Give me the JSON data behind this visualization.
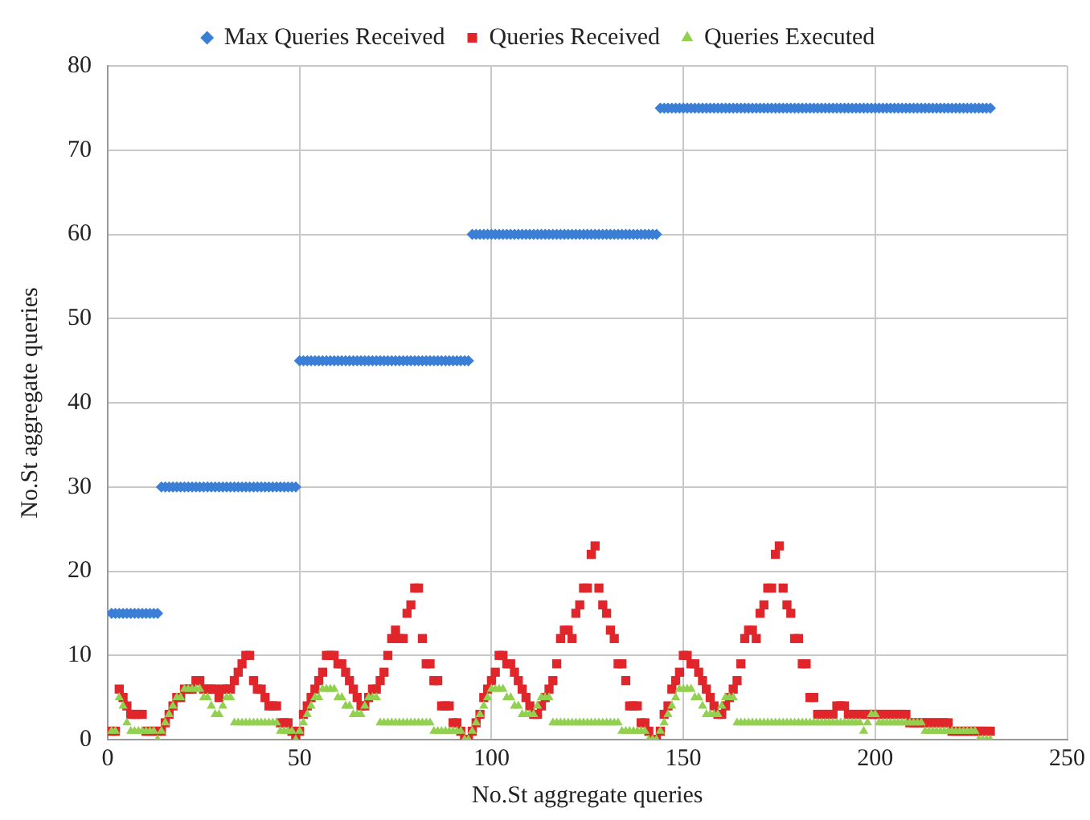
{
  "chart_data": {
    "type": "scatter",
    "xlabel": "No.St aggregate queries",
    "ylabel": "No.St aggregate queries",
    "x": [
      1,
      2,
      3,
      4,
      5,
      6,
      7,
      8,
      9,
      10,
      11,
      12,
      13,
      14,
      15,
      16,
      17,
      18,
      19,
      20,
      21,
      22,
      23,
      24,
      25,
      26,
      27,
      28,
      29,
      30,
      31,
      32,
      33,
      34,
      35,
      36,
      37,
      38,
      39,
      40,
      41,
      42,
      43,
      44,
      45,
      46,
      47,
      48,
      49,
      50,
      51,
      52,
      53,
      54,
      55,
      56,
      57,
      58,
      59,
      60,
      61,
      62,
      63,
      64,
      65,
      66,
      67,
      68,
      69,
      70,
      71,
      72,
      73,
      74,
      75,
      76,
      77,
      78,
      79,
      80,
      81,
      82,
      83,
      84,
      85,
      86,
      87,
      88,
      89,
      90,
      91,
      92,
      93,
      94,
      95,
      96,
      97,
      98,
      99,
      100,
      101,
      102,
      103,
      104,
      105,
      106,
      107,
      108,
      109,
      110,
      111,
      112,
      113,
      114,
      115,
      116,
      117,
      118,
      119,
      120,
      121,
      122,
      123,
      124,
      125,
      126,
      127,
      128,
      129,
      130,
      131,
      132,
      133,
      134,
      135,
      136,
      137,
      138,
      139,
      140,
      141,
      142,
      143,
      144,
      145,
      146,
      147,
      148,
      149,
      150,
      151,
      152,
      153,
      154,
      155,
      156,
      157,
      158,
      159,
      160,
      161,
      162,
      163,
      164,
      165,
      166,
      167,
      168,
      169,
      170,
      171,
      172,
      173,
      174,
      175,
      176,
      177,
      178,
      179,
      180,
      181,
      182,
      183,
      184,
      185,
      186,
      187,
      188,
      189,
      190,
      191,
      192,
      193,
      194,
      195,
      196,
      197,
      198,
      199,
      200,
      201,
      202,
      203,
      204,
      205,
      206,
      207,
      208,
      209,
      210,
      211,
      212,
      213,
      214,
      215,
      216,
      217,
      218,
      219,
      220,
      221,
      222,
      223,
      224,
      225,
      226,
      227,
      228,
      229,
      230
    ],
    "series": [
      {
        "name": "Max Queries Received",
        "color": "#3a7fd5",
        "marker": "diamond",
        "values": [
          15,
          15,
          15,
          15,
          15,
          15,
          15,
          15,
          15,
          15,
          15,
          15,
          15,
          30,
          30,
          30,
          30,
          30,
          30,
          30,
          30,
          30,
          30,
          30,
          30,
          30,
          30,
          30,
          30,
          30,
          30,
          30,
          30,
          30,
          30,
          30,
          30,
          30,
          30,
          30,
          30,
          30,
          30,
          30,
          30,
          30,
          30,
          30,
          30,
          45,
          45,
          45,
          45,
          45,
          45,
          45,
          45,
          45,
          45,
          45,
          45,
          45,
          45,
          45,
          45,
          45,
          45,
          45,
          45,
          45,
          45,
          45,
          45,
          45,
          45,
          45,
          45,
          45,
          45,
          45,
          45,
          45,
          45,
          45,
          45,
          45,
          45,
          45,
          45,
          45,
          45,
          45,
          45,
          45,
          60,
          60,
          60,
          60,
          60,
          60,
          60,
          60,
          60,
          60,
          60,
          60,
          60,
          60,
          60,
          60,
          60,
          60,
          60,
          60,
          60,
          60,
          60,
          60,
          60,
          60,
          60,
          60,
          60,
          60,
          60,
          60,
          60,
          60,
          60,
          60,
          60,
          60,
          60,
          60,
          60,
          60,
          60,
          60,
          60,
          60,
          60,
          60,
          60,
          75,
          75,
          75,
          75,
          75,
          75,
          75,
          75,
          75,
          75,
          75,
          75,
          75,
          75,
          75,
          75,
          75,
          75,
          75,
          75,
          75,
          75,
          75,
          75,
          75,
          75,
          75,
          75,
          75,
          75,
          75,
          75,
          75,
          75,
          75,
          75,
          75,
          75,
          75,
          75,
          75,
          75,
          75,
          75,
          75,
          75,
          75,
          75,
          75,
          75,
          75,
          75,
          75,
          75,
          75,
          75,
          75,
          75,
          75,
          75,
          75,
          75,
          75,
          75,
          75,
          75,
          75,
          75,
          75,
          75,
          75,
          75,
          75,
          75,
          75,
          75,
          75,
          75,
          75,
          75,
          75,
          75,
          75,
          75,
          75,
          75,
          75
        ]
      },
      {
        "name": "Queries Received",
        "color": "#e0262b",
        "marker": "square",
        "values": [
          1,
          1,
          6,
          5,
          4,
          3,
          3,
          3,
          3,
          1,
          1,
          1,
          1,
          1,
          2,
          3,
          4,
          5,
          5,
          6,
          6,
          6,
          7,
          7,
          6,
          6,
          6,
          6,
          5,
          6,
          6,
          6,
          7,
          8,
          9,
          10,
          10,
          7,
          6,
          6,
          5,
          4,
          4,
          4,
          2,
          2,
          2,
          1,
          0,
          1,
          3,
          4,
          5,
          6,
          7,
          8,
          10,
          10,
          10,
          9,
          9,
          8,
          7,
          6,
          5,
          4,
          4,
          5,
          6,
          6,
          7,
          8,
          10,
          12,
          13,
          12,
          12,
          15,
          16,
          18,
          18,
          12,
          9,
          9,
          7,
          7,
          4,
          4,
          4,
          2,
          2,
          1,
          0,
          0,
          1,
          2,
          3,
          5,
          6,
          7,
          8,
          10,
          10,
          9,
          9,
          8,
          7,
          6,
          5,
          4,
          3,
          3,
          4,
          5,
          6,
          7,
          9,
          12,
          13,
          13,
          12,
          15,
          16,
          18,
          18,
          22,
          23,
          18,
          16,
          15,
          13,
          12,
          9,
          9,
          7,
          4,
          4,
          4,
          2,
          2,
          1,
          0,
          0,
          1,
          3,
          4,
          6,
          7,
          8,
          10,
          10,
          9,
          9,
          8,
          7,
          6,
          5,
          4,
          3,
          3,
          4,
          5,
          6,
          7,
          9,
          12,
          13,
          13,
          12,
          15,
          16,
          18,
          18,
          22,
          23,
          18,
          16,
          15,
          12,
          12,
          9,
          9,
          5,
          5,
          3,
          3,
          3,
          3,
          3,
          4,
          4,
          4,
          3,
          3,
          3,
          3,
          3,
          3,
          3,
          3,
          3,
          3,
          3,
          3,
          3,
          3,
          3,
          3,
          2,
          2,
          2,
          2,
          2,
          2,
          2,
          2,
          2,
          2,
          2,
          1,
          1,
          1,
          1,
          1,
          1,
          1,
          1,
          1,
          1,
          1
        ]
      },
      {
        "name": "Queries Executed",
        "color": "#92d050",
        "marker": "triangle",
        "values": [
          1,
          1,
          5,
          4,
          2,
          1,
          1,
          1,
          1,
          1,
          1,
          1,
          0,
          1,
          2,
          3,
          4,
          5,
          5,
          6,
          6,
          6,
          6,
          6,
          5,
          5,
          4,
          3,
          3,
          4,
          5,
          5,
          2,
          2,
          2,
          2,
          2,
          2,
          2,
          2,
          2,
          2,
          2,
          2,
          1,
          1,
          1,
          1,
          0,
          1,
          2,
          3,
          4,
          5,
          5,
          6,
          6,
          6,
          6,
          5,
          5,
          4,
          4,
          3,
          3,
          3,
          4,
          5,
          5,
          5,
          2,
          2,
          2,
          2,
          2,
          2,
          2,
          2,
          2,
          2,
          2,
          2,
          2,
          2,
          1,
          1,
          1,
          1,
          1,
          1,
          1,
          1,
          0,
          0,
          1,
          2,
          3,
          4,
          5,
          6,
          6,
          6,
          6,
          5,
          5,
          4,
          4,
          3,
          3,
          3,
          3,
          4,
          5,
          5,
          5,
          2,
          2,
          2,
          2,
          2,
          2,
          2,
          2,
          2,
          2,
          2,
          2,
          2,
          2,
          2,
          2,
          2,
          2,
          1,
          1,
          1,
          1,
          1,
          1,
          1,
          0,
          0,
          0,
          1,
          2,
          3,
          4,
          5,
          6,
          6,
          6,
          6,
          5,
          5,
          4,
          3,
          3,
          3,
          3,
          4,
          5,
          5,
          5,
          2,
          2,
          2,
          2,
          2,
          2,
          2,
          2,
          2,
          2,
          2,
          2,
          2,
          2,
          2,
          2,
          2,
          2,
          2,
          2,
          2,
          2,
          2,
          2,
          2,
          2,
          2,
          2,
          2,
          2,
          2,
          2,
          2,
          1,
          2,
          3,
          3,
          2,
          2,
          2,
          2,
          2,
          2,
          2,
          2,
          2,
          2,
          2,
          2,
          1,
          1,
          1,
          1,
          1,
          1,
          1,
          1,
          1,
          1,
          1,
          1,
          1,
          1,
          0,
          0,
          0,
          0
        ]
      }
    ],
    "xlim": [
      0,
      250
    ],
    "xticks": [
      0,
      50,
      100,
      150,
      200,
      250
    ],
    "ylim": [
      0,
      80
    ],
    "yticks": [
      0,
      10,
      20,
      30,
      40,
      50,
      60,
      70,
      80
    ],
    "grid": true,
    "legend": "top"
  }
}
